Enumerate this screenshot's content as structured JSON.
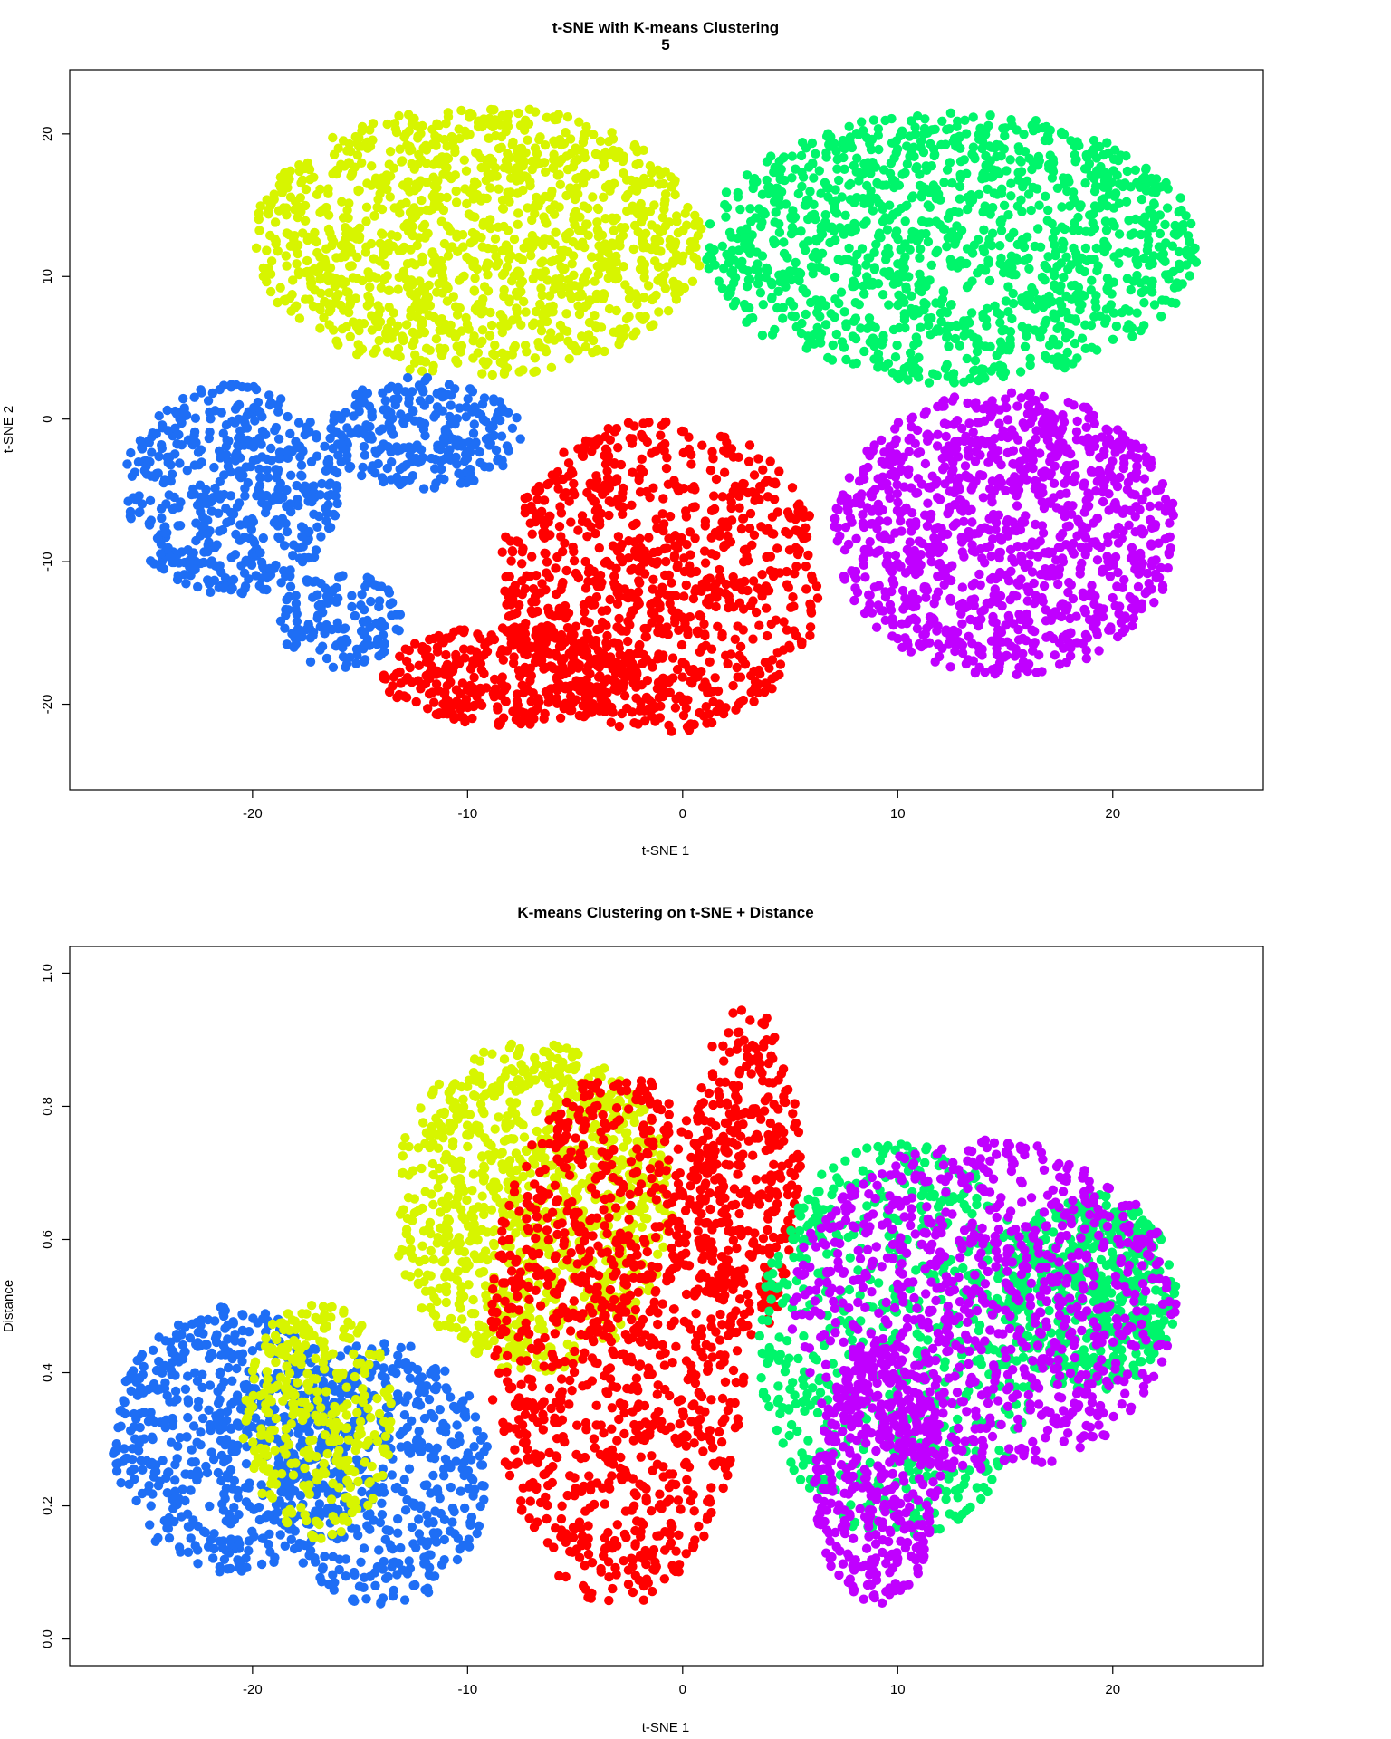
{
  "palette": {
    "blue": "#1e6ef5",
    "yellow": "#d7f500",
    "green": "#00f56b",
    "red": "#ff0000",
    "purple": "#c000ff"
  },
  "chart_data": [
    {
      "type": "scatter",
      "title": "t-SNE with K-means Clustering",
      "subtitle": "5",
      "xlabel": "t-SNE 1",
      "ylabel": "t-SNE 2",
      "xlim": [
        -28.5,
        27
      ],
      "ylim": [
        -26,
        24.5
      ],
      "xticks": [
        -20,
        -10,
        0,
        10,
        20
      ],
      "yticks": [
        -20,
        -10,
        0,
        10,
        20
      ],
      "grid": false,
      "legend": "none",
      "series": [
        {
          "color_key": "yellow",
          "n": 1300,
          "regions": [
            {
              "cx": -9.5,
              "cy": 12.5,
              "rx": 10.5,
              "ry": 9.5,
              "w": 1.0
            }
          ]
        },
        {
          "color_key": "green",
          "n": 1300,
          "regions": [
            {
              "cx": 12.5,
              "cy": 12,
              "rx": 11.5,
              "ry": 9.5,
              "w": 1.0
            }
          ]
        },
        {
          "color_key": "blue",
          "n": 900,
          "regions": [
            {
              "cx": -21,
              "cy": -5,
              "rx": 5,
              "ry": 7.5,
              "w": 0.55
            },
            {
              "cx": -12,
              "cy": -1,
              "rx": 4.5,
              "ry": 4,
              "w": 0.3
            },
            {
              "cx": -16,
              "cy": -14,
              "rx": 3,
              "ry": 3.5,
              "w": 0.15
            }
          ]
        },
        {
          "color_key": "red",
          "n": 1300,
          "regions": [
            {
              "cx": -1,
              "cy": -11,
              "rx": 7.5,
              "ry": 11,
              "w": 0.7
            },
            {
              "cx": -8,
              "cy": -18,
              "rx": 6,
              "ry": 3.5,
              "w": 0.3
            }
          ]
        },
        {
          "color_key": "purple",
          "n": 1100,
          "regions": [
            {
              "cx": 15,
              "cy": -8,
              "rx": 8,
              "ry": 10,
              "w": 1.0
            }
          ]
        }
      ]
    },
    {
      "type": "scatter",
      "title": "K-means Clustering on t-SNE + Distance",
      "subtitle": "",
      "xlabel": "t-SNE 1",
      "ylabel": "Distance",
      "xlim": [
        -28.5,
        27
      ],
      "ylim": [
        -0.04,
        1.04
      ],
      "xticks": [
        -20,
        -10,
        0,
        10,
        20
      ],
      "yticks": [
        0.0,
        0.2,
        0.4,
        0.6,
        0.8,
        1.0
      ],
      "ytick_labels": [
        "0.0",
        "0.2",
        "0.4",
        "0.6",
        "0.8",
        "1.0"
      ],
      "grid": false,
      "legend": "none",
      "series": [
        {
          "color_key": "blue",
          "n": 1100,
          "regions": [
            {
              "cx": -21,
              "cy": 0.3,
              "rx": 5.5,
              "ry": 0.2,
              "w": 0.55
            },
            {
              "cx": -14,
              "cy": 0.25,
              "rx": 5,
              "ry": 0.2,
              "w": 0.45
            }
          ]
        },
        {
          "color_key": "yellow",
          "n": 1300,
          "regions": [
            {
              "cx": -7,
              "cy": 0.65,
              "rx": 6.5,
              "ry": 0.25,
              "w": 0.75
            },
            {
              "cx": -17,
              "cy": 0.33,
              "rx": 3.5,
              "ry": 0.18,
              "w": 0.25
            }
          ]
        },
        {
          "color_key": "red",
          "n": 1400,
          "regions": [
            {
              "cx": -3,
              "cy": 0.45,
              "rx": 6,
              "ry": 0.4,
              "w": 0.75
            },
            {
              "cx": 3,
              "cy": 0.7,
              "rx": 2.5,
              "ry": 0.25,
              "w": 0.25
            }
          ]
        },
        {
          "color_key": "green",
          "n": 1200,
          "regions": [
            {
              "cx": 10,
              "cy": 0.45,
              "rx": 6.5,
              "ry": 0.3,
              "w": 0.55
            },
            {
              "cx": 19,
              "cy": 0.52,
              "rx": 4,
              "ry": 0.15,
              "w": 0.45
            }
          ]
        },
        {
          "color_key": "purple",
          "n": 1300,
          "regions": [
            {
              "cx": 14,
              "cy": 0.5,
              "rx": 9,
              "ry": 0.25,
              "w": 0.7
            },
            {
              "cx": 9,
              "cy": 0.25,
              "rx": 3,
              "ry": 0.2,
              "w": 0.3
            }
          ]
        }
      ]
    }
  ]
}
